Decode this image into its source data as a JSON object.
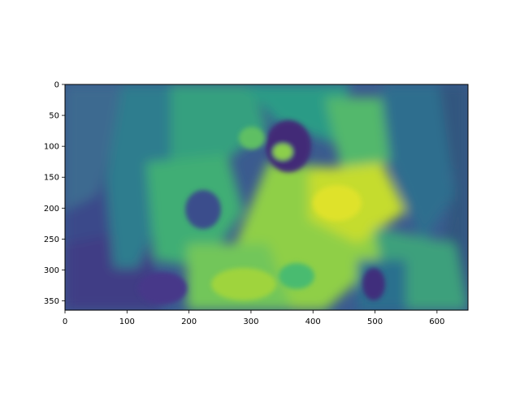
{
  "chart_data": {
    "type": "heatmap",
    "title": "",
    "xlabel": "",
    "ylabel": "",
    "xlim": [
      0,
      650
    ],
    "ylim": [
      365,
      0
    ],
    "y_inverted": true,
    "colormap": "viridis",
    "x_ticks": [
      0,
      100,
      200,
      300,
      400,
      500,
      600
    ],
    "y_ticks": [
      0,
      50,
      100,
      150,
      200,
      250,
      300,
      350
    ],
    "grid": false,
    "legend": "none"
  },
  "colors": {
    "viridis_dark": "#440154",
    "viridis_blue": "#31688e",
    "viridis_teal": "#21918c",
    "viridis_green": "#35b779",
    "viridis_yellow": "#fde725"
  }
}
